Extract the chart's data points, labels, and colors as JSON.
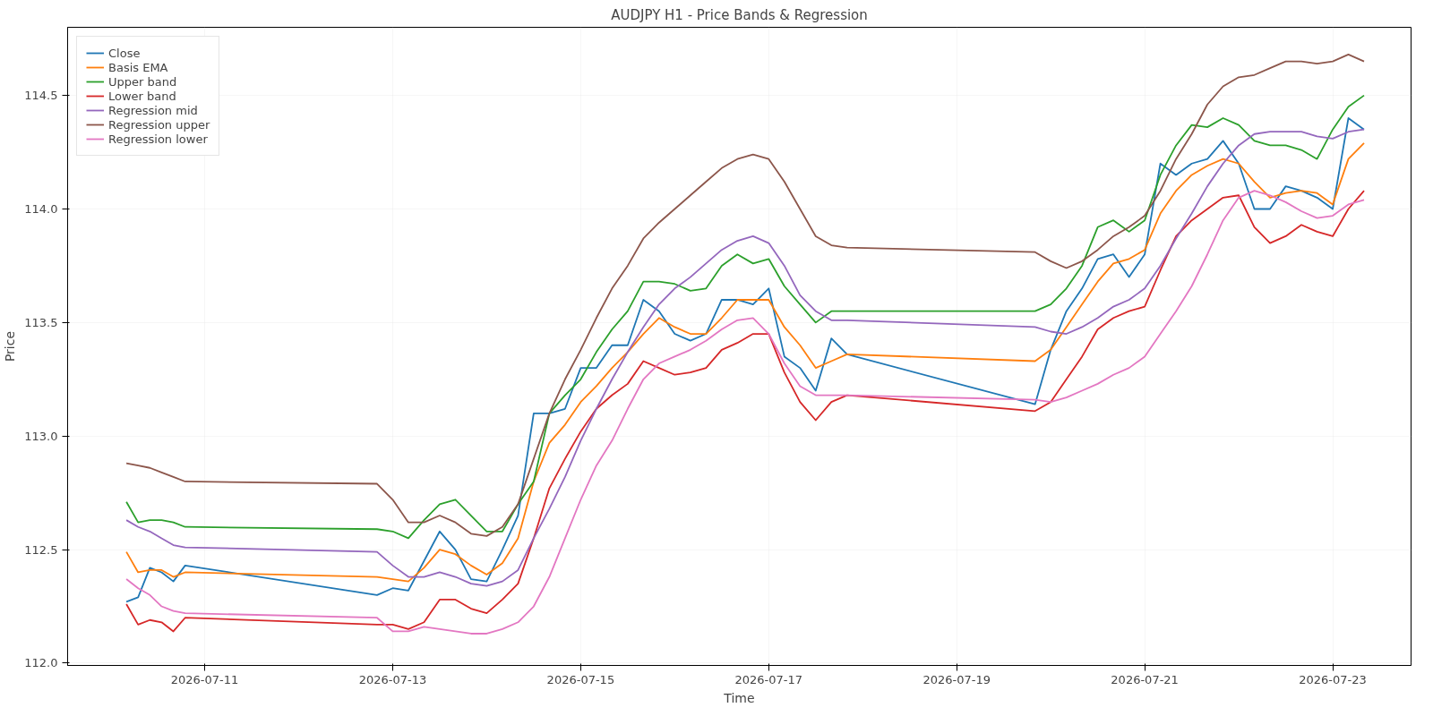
{
  "chart_data": {
    "type": "line",
    "title": "AUDJPY H1 - Price Bands & Regression",
    "xlabel": "Time",
    "ylabel": "Price",
    "x": [
      "2026-07-10T04:00",
      "2026-07-10T07:00",
      "2026-07-10T10:00",
      "2026-07-10T13:00",
      "2026-07-10T16:00",
      "2026-07-10T19:00",
      "2026-07-12T20:00",
      "2026-07-13T00:00",
      "2026-07-13T04:00",
      "2026-07-13T08:00",
      "2026-07-13T12:00",
      "2026-07-13T16:00",
      "2026-07-13T20:00",
      "2026-07-14T00:00",
      "2026-07-14T04:00",
      "2026-07-14T08:00",
      "2026-07-14T12:00",
      "2026-07-14T16:00",
      "2026-07-14T20:00",
      "2026-07-15T00:00",
      "2026-07-15T04:00",
      "2026-07-15T08:00",
      "2026-07-15T12:00",
      "2026-07-15T16:00",
      "2026-07-15T20:00",
      "2026-07-16T00:00",
      "2026-07-16T04:00",
      "2026-07-16T08:00",
      "2026-07-16T12:00",
      "2026-07-16T16:00",
      "2026-07-16T20:00",
      "2026-07-17T00:00",
      "2026-07-17T04:00",
      "2026-07-17T08:00",
      "2026-07-17T12:00",
      "2026-07-17T16:00",
      "2026-07-17T20:00",
      "2026-07-19T20:00",
      "2026-07-20T00:00",
      "2026-07-20T04:00",
      "2026-07-20T08:00",
      "2026-07-20T12:00",
      "2026-07-20T16:00",
      "2026-07-20T20:00",
      "2026-07-21T00:00",
      "2026-07-21T04:00",
      "2026-07-21T08:00",
      "2026-07-21T12:00",
      "2026-07-21T16:00",
      "2026-07-21T20:00",
      "2026-07-22T00:00",
      "2026-07-22T04:00",
      "2026-07-22T08:00",
      "2026-07-22T12:00",
      "2026-07-22T16:00",
      "2026-07-22T20:00",
      "2026-07-23T00:00",
      "2026-07-23T04:00",
      "2026-07-23T08:00"
    ],
    "series": [
      {
        "name": "Close",
        "color": "#1f77b4",
        "values": [
          112.27,
          112.29,
          112.42,
          112.4,
          112.36,
          112.43,
          112.3,
          112.33,
          112.32,
          112.45,
          112.58,
          112.5,
          112.37,
          112.36,
          112.5,
          112.65,
          113.1,
          113.1,
          113.12,
          113.3,
          113.3,
          113.4,
          113.4,
          113.6,
          113.55,
          113.45,
          113.42,
          113.45,
          113.6,
          113.6,
          113.58,
          113.65,
          113.35,
          113.3,
          113.2,
          113.43,
          113.36,
          113.14,
          113.38,
          113.55,
          113.65,
          113.78,
          113.8,
          113.7,
          113.8,
          114.2,
          114.15,
          114.2,
          114.22,
          114.3,
          114.2,
          114.0,
          114.0,
          114.1,
          114.08,
          114.05,
          114.0,
          114.4,
          114.35
        ]
      },
      {
        "name": "Basis EMA",
        "color": "#ff7f0e",
        "values": [
          112.49,
          112.4,
          112.41,
          112.41,
          112.38,
          112.4,
          112.38,
          112.37,
          112.36,
          112.42,
          112.5,
          112.48,
          112.43,
          112.39,
          112.44,
          112.55,
          112.8,
          112.97,
          113.05,
          113.15,
          113.22,
          113.3,
          113.37,
          113.45,
          113.52,
          113.48,
          113.45,
          113.45,
          113.52,
          113.6,
          113.6,
          113.6,
          113.48,
          113.4,
          113.3,
          113.33,
          113.36,
          113.33,
          113.38,
          113.48,
          113.58,
          113.68,
          113.76,
          113.78,
          113.82,
          113.98,
          114.08,
          114.15,
          114.19,
          114.22,
          114.2,
          114.12,
          114.05,
          114.07,
          114.08,
          114.07,
          114.02,
          114.22,
          114.29
        ]
      },
      {
        "name": "Upper band",
        "color": "#2ca02c",
        "values": [
          112.71,
          112.62,
          112.63,
          112.63,
          112.62,
          112.6,
          112.59,
          112.58,
          112.55,
          112.63,
          112.7,
          112.72,
          112.65,
          112.58,
          112.58,
          112.7,
          112.8,
          113.1,
          113.18,
          113.25,
          113.37,
          113.47,
          113.55,
          113.68,
          113.68,
          113.67,
          113.64,
          113.65,
          113.75,
          113.8,
          113.76,
          113.78,
          113.66,
          113.58,
          113.5,
          113.55,
          113.55,
          113.55,
          113.58,
          113.65,
          113.75,
          113.92,
          113.95,
          113.9,
          113.95,
          114.15,
          114.28,
          114.37,
          114.36,
          114.4,
          114.37,
          114.3,
          114.28,
          114.28,
          114.26,
          114.22,
          114.35,
          114.45,
          114.5
        ]
      },
      {
        "name": "Lower band",
        "color": "#d62728",
        "values": [
          112.26,
          112.17,
          112.19,
          112.18,
          112.14,
          112.2,
          112.17,
          112.17,
          112.15,
          112.18,
          112.28,
          112.28,
          112.24,
          112.22,
          112.28,
          112.35,
          112.55,
          112.77,
          112.9,
          113.02,
          113.12,
          113.18,
          113.23,
          113.33,
          113.3,
          113.27,
          113.28,
          113.3,
          113.38,
          113.41,
          113.45,
          113.45,
          113.28,
          113.15,
          113.07,
          113.15,
          113.18,
          113.11,
          113.15,
          113.25,
          113.35,
          113.47,
          113.52,
          113.55,
          113.57,
          113.73,
          113.88,
          113.95,
          114.0,
          114.05,
          114.06,
          113.92,
          113.85,
          113.88,
          113.93,
          113.9,
          113.88,
          114.0,
          114.08
        ]
      },
      {
        "name": "Regression mid",
        "color": "#9467bd",
        "values": [
          112.63,
          112.6,
          112.58,
          112.55,
          112.52,
          112.51,
          112.49,
          112.43,
          112.38,
          112.38,
          112.4,
          112.38,
          112.35,
          112.34,
          112.36,
          112.41,
          112.55,
          112.68,
          112.82,
          112.98,
          113.12,
          113.25,
          113.37,
          113.48,
          113.58,
          113.65,
          113.7,
          113.76,
          113.82,
          113.86,
          113.88,
          113.85,
          113.75,
          113.62,
          113.55,
          113.51,
          113.51,
          113.48,
          113.46,
          113.45,
          113.48,
          113.52,
          113.57,
          113.6,
          113.65,
          113.75,
          113.87,
          113.98,
          114.1,
          114.2,
          114.28,
          114.33,
          114.34,
          114.34,
          114.34,
          114.32,
          114.31,
          114.34,
          114.35
        ]
      },
      {
        "name": "Regression upper",
        "color": "#8c564b",
        "values": [
          112.88,
          112.87,
          112.86,
          112.84,
          112.82,
          112.8,
          112.79,
          112.72,
          112.62,
          112.62,
          112.65,
          112.62,
          112.57,
          112.56,
          112.6,
          112.7,
          112.9,
          113.1,
          113.25,
          113.38,
          113.52,
          113.65,
          113.75,
          113.87,
          113.94,
          114.0,
          114.06,
          114.12,
          114.18,
          114.22,
          114.24,
          114.22,
          114.12,
          114.0,
          113.88,
          113.84,
          113.83,
          113.81,
          113.77,
          113.74,
          113.77,
          113.82,
          113.88,
          113.92,
          113.97,
          114.08,
          114.22,
          114.33,
          114.46,
          114.54,
          114.58,
          114.59,
          114.62,
          114.65,
          114.65,
          114.64,
          114.65,
          114.68,
          114.65
        ]
      },
      {
        "name": "Regression lower",
        "color": "#e377c2",
        "values": [
          112.37,
          112.33,
          112.3,
          112.25,
          112.23,
          112.22,
          112.2,
          112.14,
          112.14,
          112.16,
          112.15,
          112.14,
          112.13,
          112.13,
          112.15,
          112.18,
          112.25,
          112.38,
          112.55,
          112.72,
          112.87,
          112.98,
          113.12,
          113.25,
          113.32,
          113.35,
          113.38,
          113.42,
          113.47,
          113.51,
          113.52,
          113.45,
          113.32,
          113.22,
          113.18,
          113.18,
          113.18,
          113.16,
          113.15,
          113.17,
          113.2,
          113.23,
          113.27,
          113.3,
          113.35,
          113.45,
          113.55,
          113.66,
          113.8,
          113.95,
          114.05,
          114.08,
          114.06,
          114.03,
          113.99,
          113.96,
          113.97,
          114.02,
          114.04
        ]
      }
    ],
    "xlim": [
      "2026-07-09T13:00",
      "2026-07-23T20:00"
    ],
    "xticks": [
      "2026-07-11",
      "2026-07-13",
      "2026-07-15",
      "2026-07-17",
      "2026-07-19",
      "2026-07-21",
      "2026-07-23"
    ],
    "ylim": [
      111.99,
      114.8
    ],
    "yticks": [
      {
        "value": 112.0,
        "label": "112.0"
      },
      {
        "value": 112.5,
        "label": "112.5"
      },
      {
        "value": 113.0,
        "label": "113.0"
      },
      {
        "value": 113.5,
        "label": "113.5"
      },
      {
        "value": 114.0,
        "label": "114.0"
      },
      {
        "value": 114.5,
        "label": "114.5"
      }
    ],
    "grid": true,
    "legend": "top left",
    "line_style": "solid",
    "marker": "none"
  }
}
